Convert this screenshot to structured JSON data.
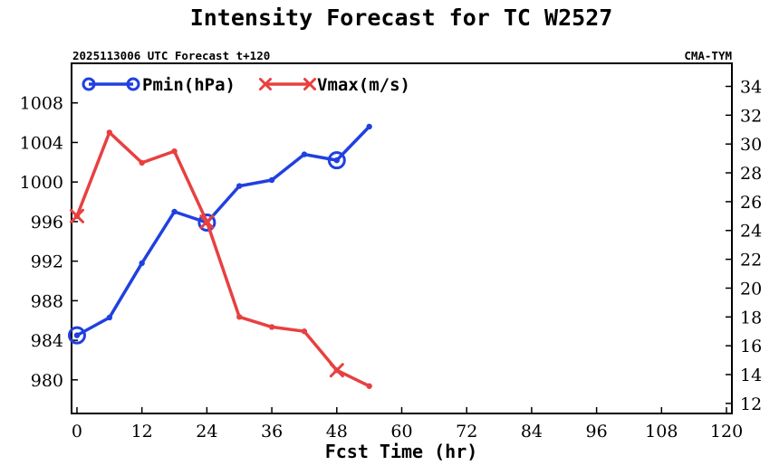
{
  "chart_data": {
    "type": "line",
    "title": "Intensity Forecast for TC W2527",
    "subtitle_left": "2025113006 UTC Forecast t+120",
    "subtitle_right": "CMA-TYM",
    "xlabel": "Fcst Time (hr)",
    "x_ticks": [
      0,
      12,
      24,
      36,
      48,
      60,
      72,
      84,
      96,
      108,
      120
    ],
    "xlim": [
      -1,
      121
    ],
    "y_left_ticks": [
      980,
      984,
      988,
      992,
      996,
      1000,
      1004,
      1008
    ],
    "y_left_lim": [
      976.6,
      1012.0
    ],
    "y_right_ticks": [
      12,
      14,
      16,
      18,
      20,
      22,
      24,
      26,
      28,
      30,
      32,
      34
    ],
    "y_right_lim": [
      11.3,
      35.6
    ],
    "legend_position": "top-left",
    "x": [
      0,
      6,
      12,
      18,
      24,
      30,
      36,
      42,
      48,
      54
    ],
    "series": [
      {
        "name": "Pmin(hPa)",
        "axis": "left",
        "color": "#2040e0",
        "marker": "circle",
        "values": [
          984.5,
          986.3,
          991.8,
          997.0,
          995.9,
          999.6,
          1000.2,
          1002.8,
          1002.2,
          1005.6
        ],
        "big_marker_x": [
          0,
          24,
          48
        ]
      },
      {
        "name": "Vmax(m/s)",
        "axis": "right",
        "color": "#e84040",
        "marker": "x",
        "values": [
          25.0,
          30.8,
          28.7,
          29.5,
          24.6,
          18.0,
          17.3,
          17.0,
          14.3,
          13.2
        ],
        "big_marker_x": [
          0,
          24,
          48
        ]
      }
    ]
  }
}
